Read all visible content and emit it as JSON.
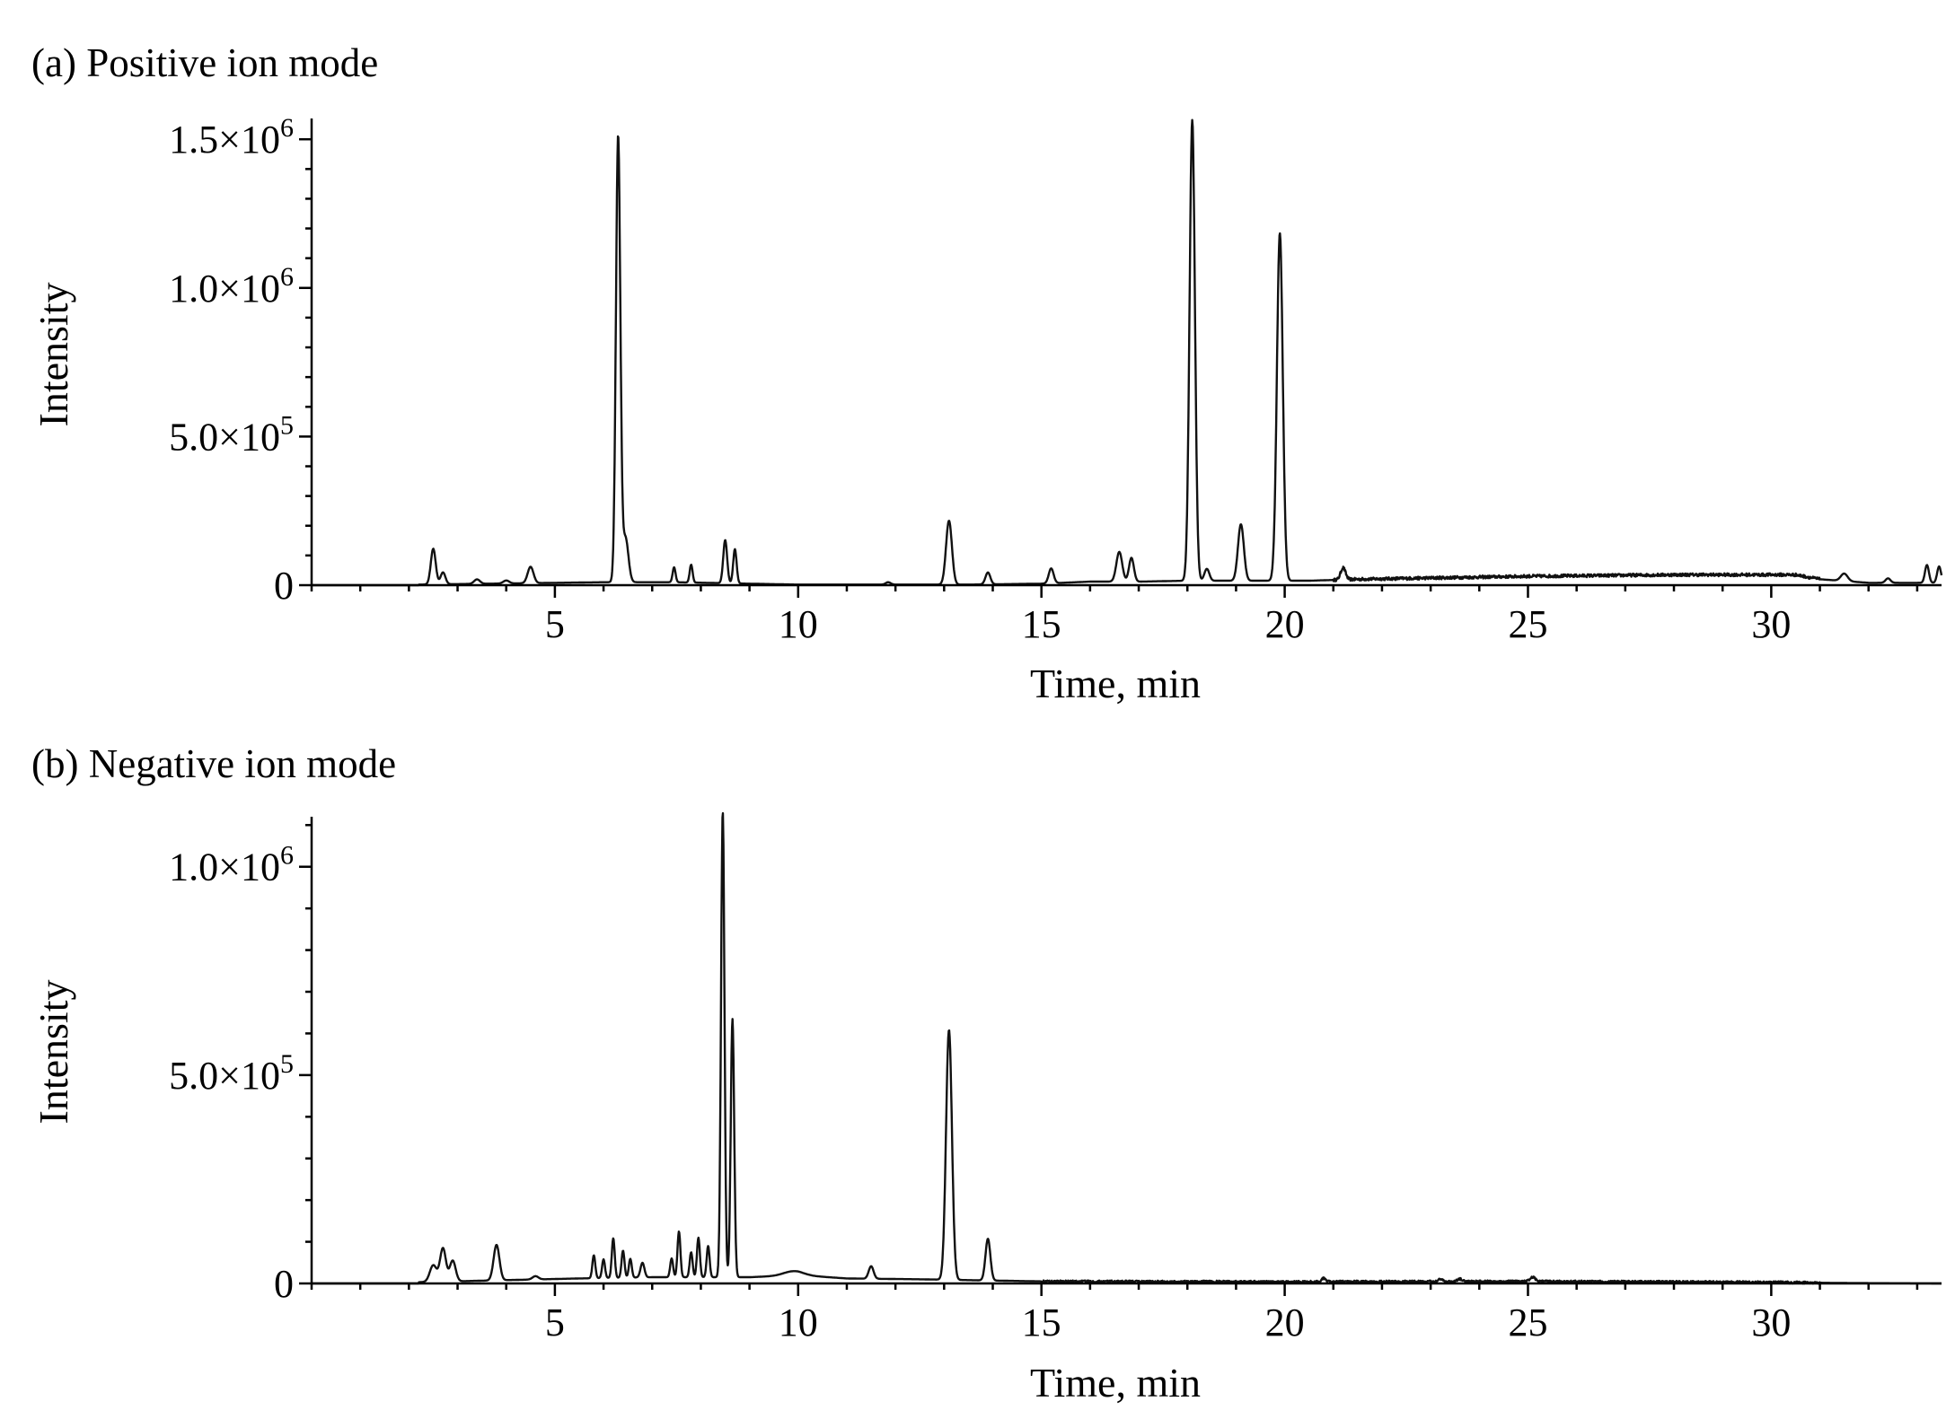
{
  "chart_data": [
    {
      "type": "line",
      "title": "(a) Positive ion mode",
      "xlabel": "Time, min",
      "ylabel": "Intensity",
      "xlim": [
        0,
        33.5
      ],
      "ylim": [
        0,
        1570000
      ],
      "xticks": [
        5,
        10,
        15,
        20,
        25,
        30
      ],
      "xtick_labels": [
        "5",
        "10",
        "15",
        "20",
        "25",
        "30"
      ],
      "yticks": [
        0,
        500000,
        1000000,
        1500000
      ],
      "ytick_labels": [
        {
          "mant": "0",
          "exp": ""
        },
        {
          "mant": "5.0×10",
          "exp": "5"
        },
        {
          "mant": "1.0×10",
          "exp": "6"
        },
        {
          "mant": "1.5×10",
          "exp": "6"
        }
      ],
      "grid": false,
      "legend": "none",
      "baseline": [
        [
          0,
          0
        ],
        [
          2.2,
          2000
        ],
        [
          6,
          10000
        ],
        [
          7.5,
          10000
        ],
        [
          9,
          5000
        ],
        [
          10,
          2000
        ],
        [
          12,
          2000
        ],
        [
          13.5,
          2000
        ],
        [
          15,
          5000
        ],
        [
          16,
          12000
        ],
        [
          17,
          12000
        ],
        [
          18,
          15000
        ],
        [
          20.5,
          15000
        ],
        [
          21.5,
          20000
        ],
        [
          25,
          30000
        ],
        [
          28,
          35000
        ],
        [
          30.5,
          35000
        ],
        [
          31,
          20000
        ],
        [
          32,
          8000
        ],
        [
          33.5,
          8000
        ]
      ],
      "noise_range": [
        21.0,
        31.0
      ],
      "noise_amplitude": 5000,
      "peaks": [
        {
          "t": 2.5,
          "h": 120000,
          "w": 0.05
        },
        {
          "t": 2.7,
          "h": 40000,
          "w": 0.05
        },
        {
          "t": 3.4,
          "h": 15000,
          "w": 0.06
        },
        {
          "t": 4.0,
          "h": 10000,
          "w": 0.06
        },
        {
          "t": 4.5,
          "h": 55000,
          "w": 0.06
        },
        {
          "t": 6.3,
          "h": 1500000,
          "w": 0.045
        },
        {
          "t": 6.45,
          "h": 150000,
          "w": 0.06
        },
        {
          "t": 7.45,
          "h": 50000,
          "w": 0.03
        },
        {
          "t": 7.8,
          "h": 60000,
          "w": 0.03
        },
        {
          "t": 8.5,
          "h": 145000,
          "w": 0.04
        },
        {
          "t": 8.7,
          "h": 115000,
          "w": 0.035
        },
        {
          "t": 11.85,
          "h": 8000,
          "w": 0.05
        },
        {
          "t": 13.1,
          "h": 215000,
          "w": 0.06
        },
        {
          "t": 13.9,
          "h": 40000,
          "w": 0.05
        },
        {
          "t": 15.2,
          "h": 50000,
          "w": 0.05
        },
        {
          "t": 16.6,
          "h": 100000,
          "w": 0.06
        },
        {
          "t": 16.85,
          "h": 80000,
          "w": 0.05
        },
        {
          "t": 18.1,
          "h": 1550000,
          "w": 0.055
        },
        {
          "t": 18.4,
          "h": 40000,
          "w": 0.05
        },
        {
          "t": 19.1,
          "h": 190000,
          "w": 0.06
        },
        {
          "t": 19.9,
          "h": 1170000,
          "w": 0.06
        },
        {
          "t": 21.2,
          "h": 40000,
          "w": 0.05
        },
        {
          "t": 31.5,
          "h": 25000,
          "w": 0.07
        },
        {
          "t": 32.4,
          "h": 15000,
          "w": 0.05
        },
        {
          "t": 33.2,
          "h": 60000,
          "w": 0.04
        },
        {
          "t": 33.45,
          "h": 55000,
          "w": 0.04
        }
      ]
    },
    {
      "type": "line",
      "title": "(b) Negative ion mode",
      "xlabel": "Time, min",
      "ylabel": "Intensity",
      "xlim": [
        0,
        33.5
      ],
      "ylim": [
        0,
        1120000
      ],
      "xticks": [
        5,
        10,
        15,
        20,
        25,
        30
      ],
      "xtick_labels": [
        "5",
        "10",
        "15",
        "20",
        "25",
        "30"
      ],
      "yticks": [
        0,
        500000,
        1000000
      ],
      "ytick_labels": [
        {
          "mant": "0",
          "exp": ""
        },
        {
          "mant": "5.0×10",
          "exp": "5"
        },
        {
          "mant": "1.0×10",
          "exp": "6"
        }
      ],
      "grid": false,
      "legend": "none",
      "baseline": [
        [
          0,
          0
        ],
        [
          2.2,
          3000
        ],
        [
          4,
          8000
        ],
        [
          5.5,
          12000
        ],
        [
          7,
          15000
        ],
        [
          9,
          15000
        ],
        [
          10,
          20000
        ],
        [
          11,
          12000
        ],
        [
          12.5,
          10000
        ],
        [
          15,
          5000
        ],
        [
          20,
          4000
        ],
        [
          25,
          5000
        ],
        [
          30,
          3000
        ],
        [
          31.5,
          1000
        ],
        [
          33.5,
          0
        ]
      ],
      "noise_range": [
        15.0,
        31.0
      ],
      "noise_amplitude": 2500,
      "peaks": [
        {
          "t": 2.5,
          "h": 40000,
          "w": 0.07
        },
        {
          "t": 2.7,
          "h": 80000,
          "w": 0.06
        },
        {
          "t": 2.9,
          "h": 50000,
          "w": 0.06
        },
        {
          "t": 3.8,
          "h": 85000,
          "w": 0.06
        },
        {
          "t": 4.6,
          "h": 8000,
          "w": 0.06
        },
        {
          "t": 5.8,
          "h": 55000,
          "w": 0.03
        },
        {
          "t": 6.0,
          "h": 45000,
          "w": 0.03
        },
        {
          "t": 6.2,
          "h": 95000,
          "w": 0.03
        },
        {
          "t": 6.4,
          "h": 65000,
          "w": 0.03
        },
        {
          "t": 6.55,
          "h": 45000,
          "w": 0.03
        },
        {
          "t": 6.8,
          "h": 35000,
          "w": 0.04
        },
        {
          "t": 7.4,
          "h": 45000,
          "w": 0.03
        },
        {
          "t": 7.55,
          "h": 110000,
          "w": 0.03
        },
        {
          "t": 7.8,
          "h": 60000,
          "w": 0.03
        },
        {
          "t": 7.95,
          "h": 95000,
          "w": 0.03
        },
        {
          "t": 8.15,
          "h": 75000,
          "w": 0.03
        },
        {
          "t": 8.45,
          "h": 1120000,
          "w": 0.035
        },
        {
          "t": 8.65,
          "h": 620000,
          "w": 0.035
        },
        {
          "t": 9.9,
          "h": 10000,
          "w": 0.2
        },
        {
          "t": 11.5,
          "h": 30000,
          "w": 0.05
        },
        {
          "t": 13.1,
          "h": 600000,
          "w": 0.06
        },
        {
          "t": 13.9,
          "h": 100000,
          "w": 0.05
        },
        {
          "t": 20.8,
          "h": 8000,
          "w": 0.04
        },
        {
          "t": 23.2,
          "h": 6000,
          "w": 0.05
        },
        {
          "t": 23.6,
          "h": 6000,
          "w": 0.05
        },
        {
          "t": 25.1,
          "h": 10000,
          "w": 0.05
        }
      ]
    }
  ]
}
